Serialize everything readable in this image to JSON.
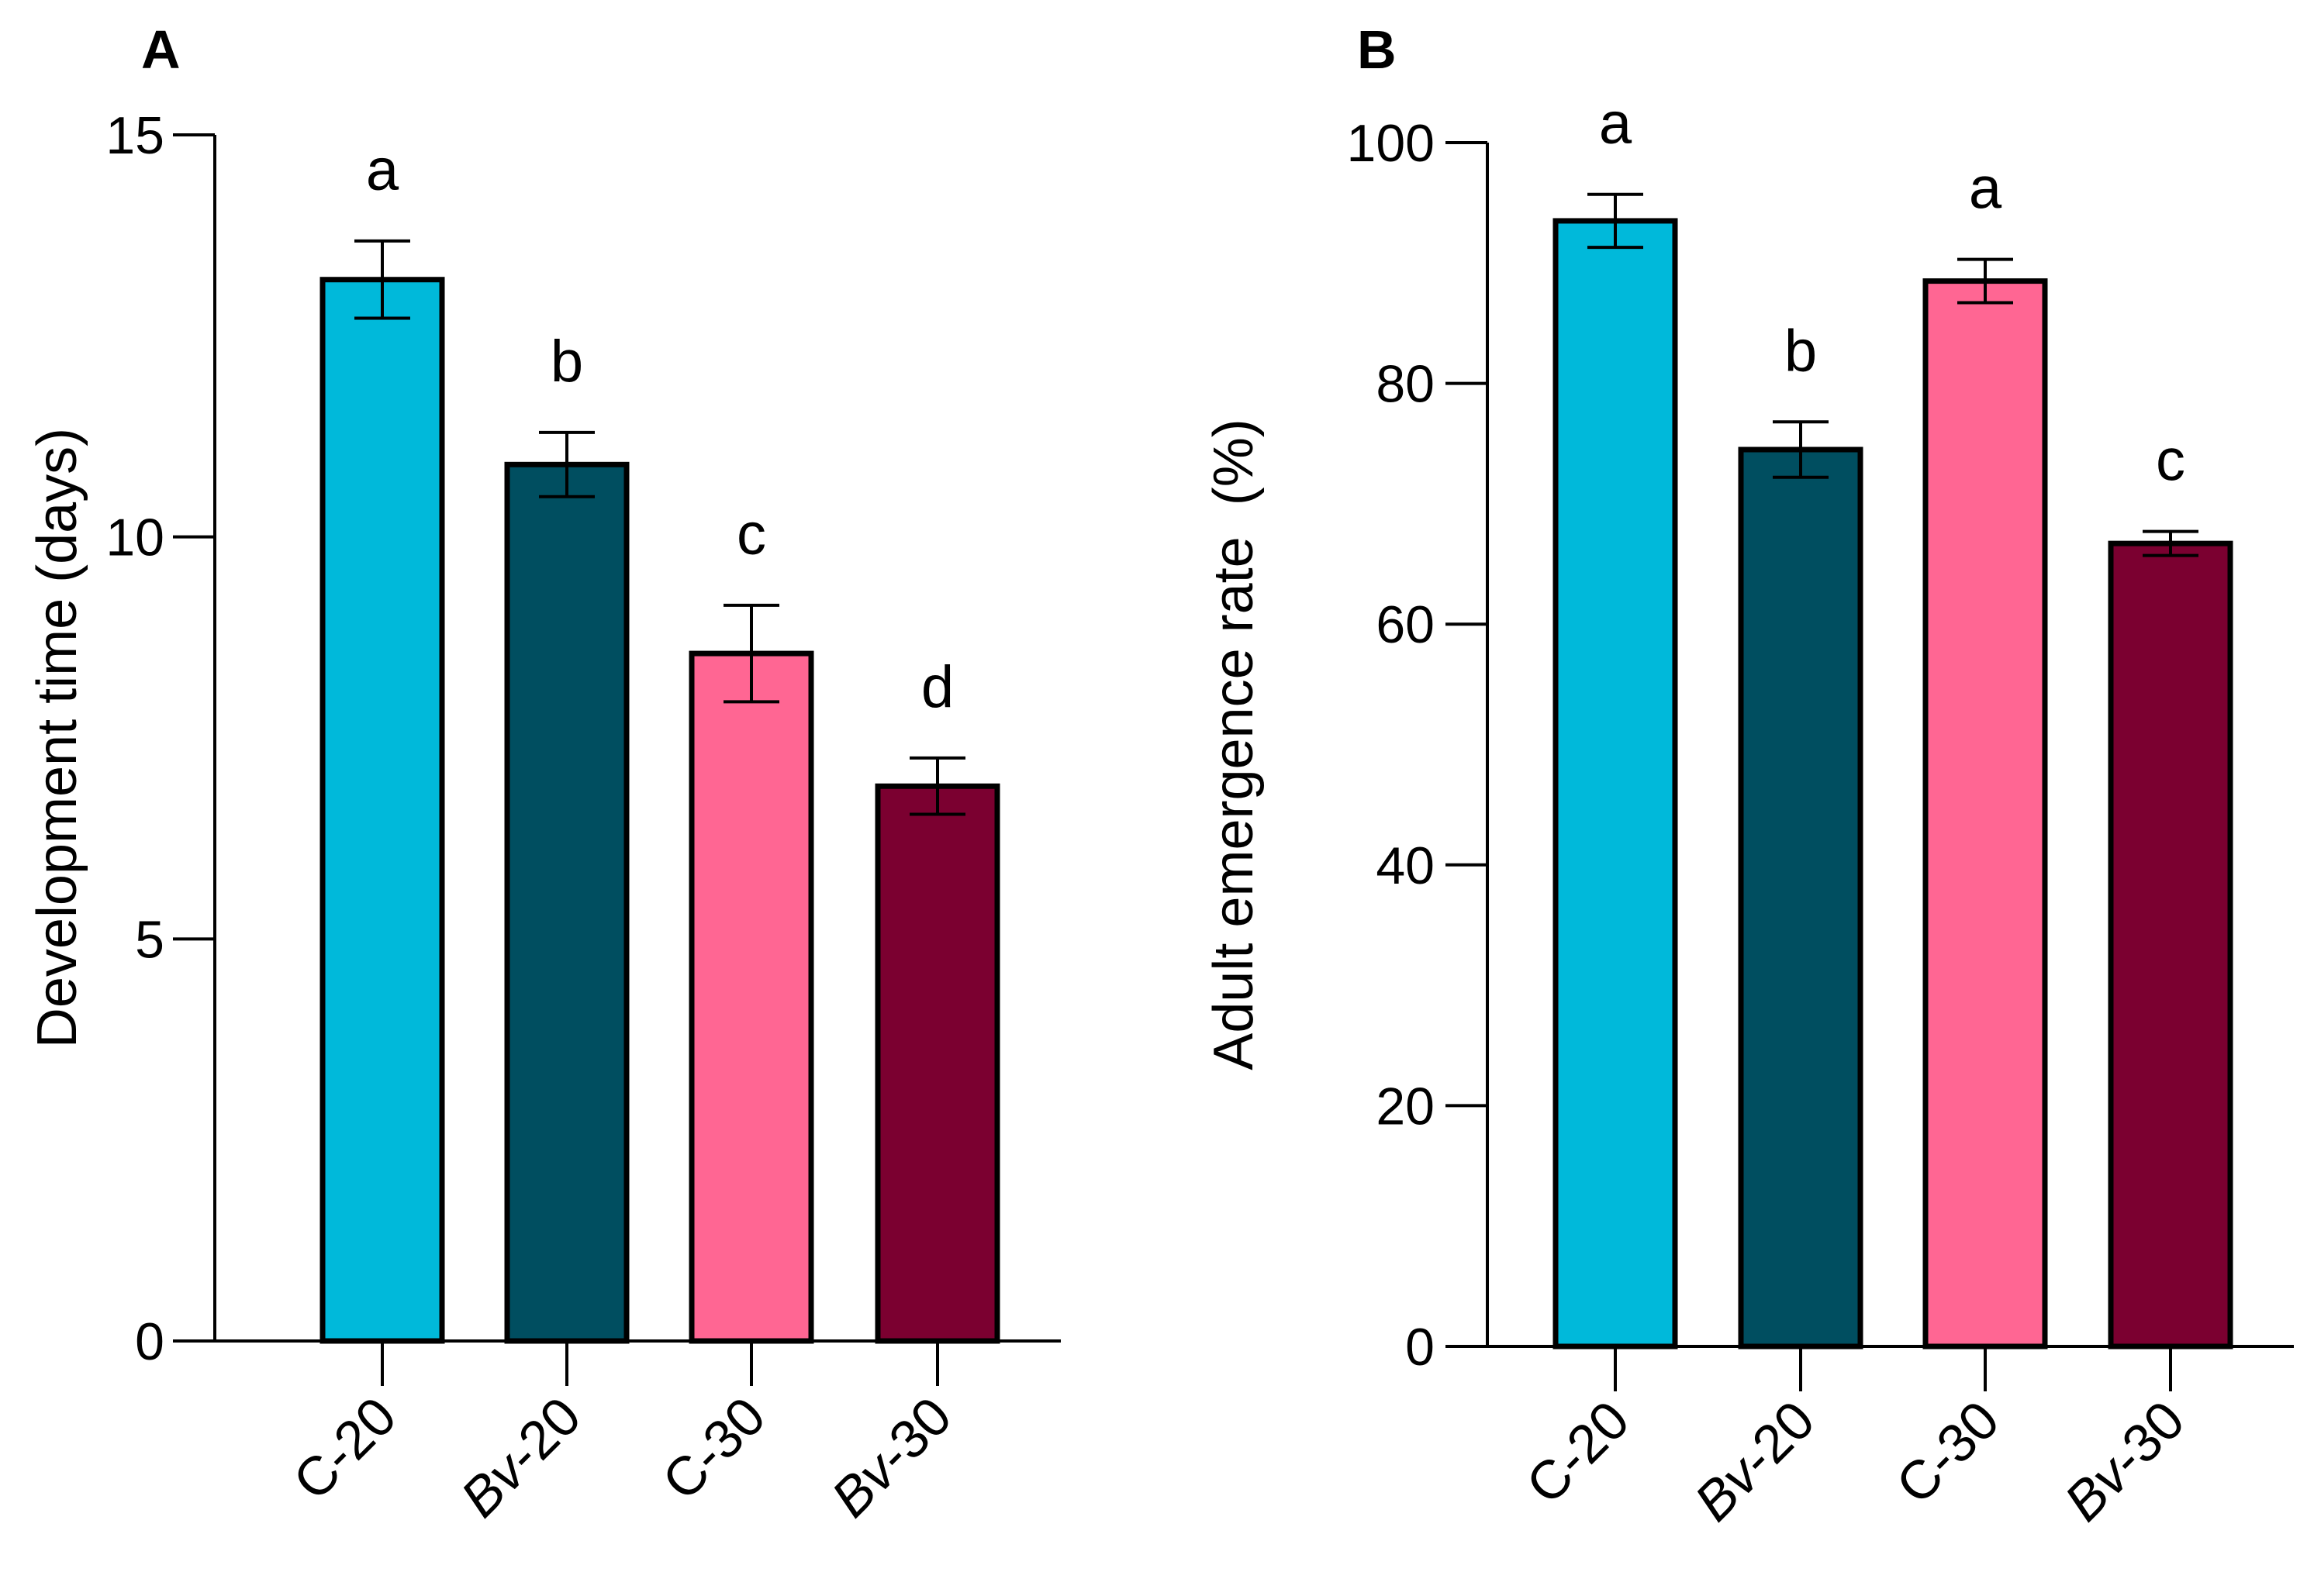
{
  "colors": {
    "C-20": "#00B9DA",
    "Bv-20": "#004E60",
    "C-30": "#FF6693",
    "Bv-30": "#7B0030"
  },
  "chart_data": [
    {
      "type": "bar",
      "panel": "A",
      "title": "",
      "xlabel": "",
      "ylabel": "Development time (days)",
      "ylim": [
        0,
        15
      ],
      "yticks": [
        0,
        5,
        10,
        15
      ],
      "yticklabels": [
        "0",
        "5",
        "10",
        "15"
      ],
      "categories": [
        {
          "prefix": "C",
          "suffix": "-20",
          "italic": false
        },
        {
          "prefix": "Bv",
          "suffix": "-20",
          "italic": true
        },
        {
          "prefix": "C",
          "suffix": "-30",
          "italic": false
        },
        {
          "prefix": "Bv",
          "suffix": "-30",
          "italic": true
        }
      ],
      "values": [
        13.2,
        10.9,
        8.55,
        6.9
      ],
      "errors": [
        0.48,
        0.4,
        0.6,
        0.35
      ],
      "significance": [
        "a",
        "b",
        "c",
        "d"
      ]
    },
    {
      "type": "bar",
      "panel": "B",
      "title": "",
      "xlabel": "",
      "ylabel": "Adult emergence rate  (%)",
      "ylim": [
        0,
        100
      ],
      "yticks": [
        0,
        20,
        40,
        60,
        80,
        100
      ],
      "yticklabels": [
        "0",
        "20",
        "40",
        "60",
        "80",
        "100"
      ],
      "categories": [
        {
          "prefix": "C",
          "suffix": "-20",
          "italic": false
        },
        {
          "prefix": "Bv",
          "suffix": "-20",
          "italic": true
        },
        {
          "prefix": "C",
          "suffix": "-30",
          "italic": false
        },
        {
          "prefix": "Bv",
          "suffix": "-30",
          "italic": true
        }
      ],
      "values": [
        93.5,
        74.5,
        88.5,
        66.7
      ],
      "errors": [
        2.2,
        2.3,
        1.8,
        1.0
      ],
      "significance": [
        "a",
        "b",
        "a",
        "c"
      ]
    }
  ]
}
